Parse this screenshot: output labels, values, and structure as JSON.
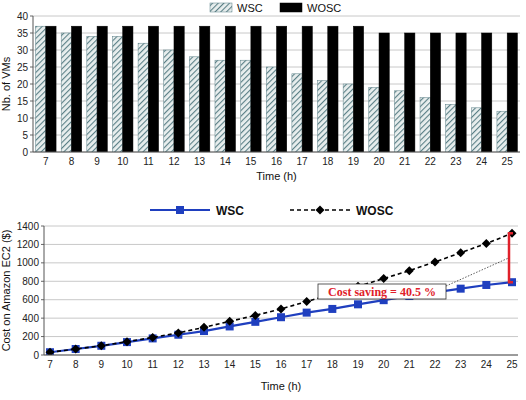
{
  "chart_data": [
    {
      "type": "bar",
      "x_label": "Time (h)",
      "y_label": "Nb. of VMs",
      "categories": [
        "7",
        "8",
        "9",
        "10",
        "11",
        "12",
        "13",
        "14",
        "15",
        "16",
        "17",
        "18",
        "19",
        "20",
        "21",
        "22",
        "23",
        "24",
        "25"
      ],
      "series": [
        {
          "name": "WSC",
          "color": "#5a7f86",
          "values": [
            37,
            35,
            34,
            34,
            32,
            30,
            28,
            27,
            27,
            25,
            23,
            21,
            20,
            19,
            18,
            16,
            14,
            13,
            12
          ]
        },
        {
          "name": "WOSC",
          "color": "#000000",
          "values": [
            37,
            37,
            37,
            37,
            37,
            37,
            37,
            37,
            37,
            37,
            37,
            37,
            37,
            35,
            35,
            35,
            35,
            35,
            35
          ]
        }
      ],
      "ylim": [
        0,
        40
      ],
      "yticks": [
        0,
        5,
        10,
        15,
        20,
        25,
        30,
        35,
        40
      ],
      "grid": true,
      "legend": "top"
    },
    {
      "type": "line",
      "x_label": "Time (h)",
      "y_label": "Cost on Amazon EC2 ($)",
      "annotation": "Cost saving = 40.5 %",
      "categories": [
        "7",
        "8",
        "9",
        "10",
        "11",
        "12",
        "13",
        "14",
        "15",
        "16",
        "17",
        "18",
        "19",
        "20",
        "21",
        "22",
        "23",
        "24",
        "25"
      ],
      "series": [
        {
          "name": "WSC",
          "color": "#1f3fbf",
          "marker": "square",
          "line_style": "solid",
          "values": [
            30,
            65,
            100,
            140,
            180,
            220,
            260,
            310,
            360,
            410,
            460,
            500,
            550,
            595,
            640,
            680,
            720,
            760,
            790
          ]
        },
        {
          "name": "WOSC",
          "color": "#000000",
          "marker": "diamond",
          "line_style": "dashed",
          "values": [
            30,
            65,
            100,
            145,
            190,
            240,
            300,
            365,
            430,
            500,
            580,
            660,
            745,
            830,
            915,
            1010,
            1110,
            1210,
            1320
          ]
        }
      ],
      "ylim": [
        0,
        1400
      ],
      "yticks": [
        0,
        200,
        400,
        600,
        800,
        1000,
        1200,
        1400
      ],
      "grid": true,
      "legend": "top"
    }
  ]
}
